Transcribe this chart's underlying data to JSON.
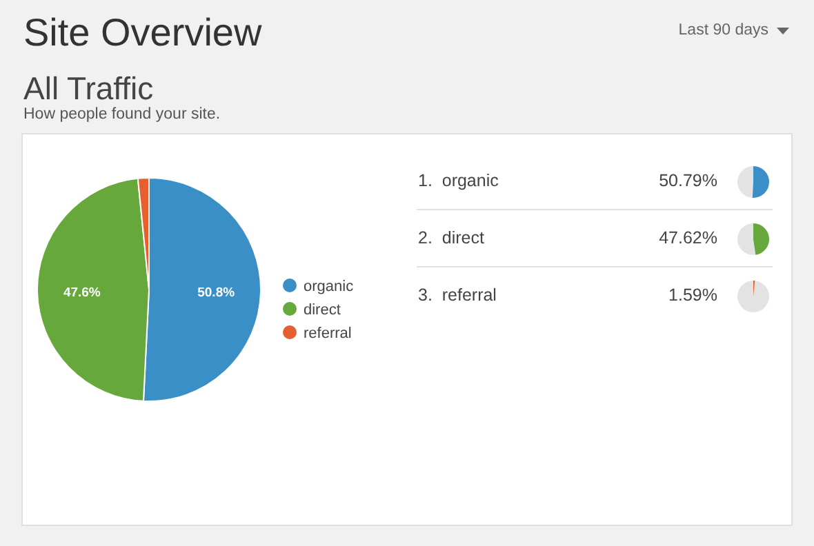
{
  "chart_data": [
    {
      "type": "pie",
      "title": "All Traffic",
      "subtitle": "How people found your site.",
      "annotations": [
        "Site Overview",
        "Last 90 days"
      ],
      "categories": [
        "organic",
        "direct",
        "referral"
      ],
      "values": [
        50.79,
        47.62,
        1.59
      ],
      "colors": [
        "#3a8fc6",
        "#67a83c",
        "#e4612f"
      ],
      "value_labels": [
        "50.8%",
        "47.6%",
        null
      ],
      "legend": "right"
    },
    {
      "type": "other",
      "categories": [
        "1.  organic",
        "2.  direct",
        "3.  referral"
      ],
      "values": [
        50.79,
        47.62,
        1.59
      ],
      "colors": [
        "#3a8fc6",
        "#67a83c",
        "#e4612f"
      ],
      "value_labels": [
        "50.79%",
        "47.62%",
        "1.59%"
      ]
    }
  ]
}
